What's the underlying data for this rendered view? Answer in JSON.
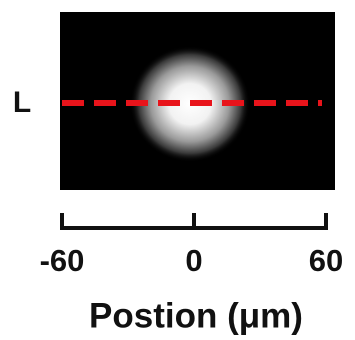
{
  "chart_data": {
    "type": "image",
    "annotation": "L",
    "annotation_color": "#e8141b",
    "xlabel": "Postion (μm)",
    "xlim": [
      -60,
      60
    ],
    "xticks": [
      -60,
      0,
      60
    ]
  }
}
